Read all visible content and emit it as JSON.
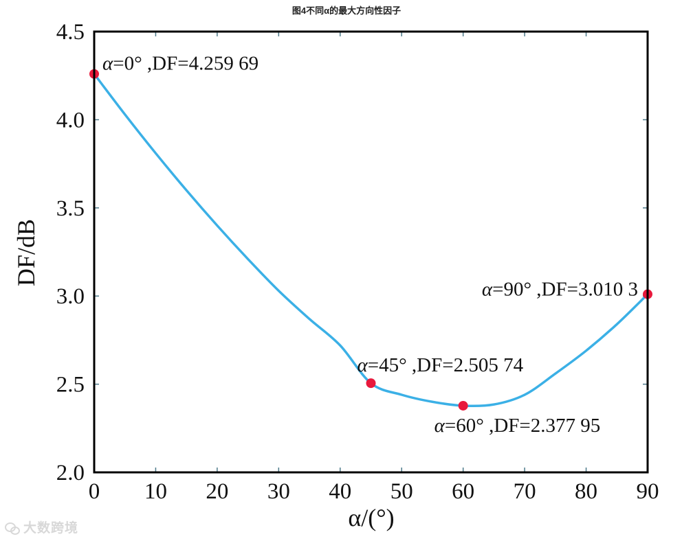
{
  "figure": {
    "title": "图4不同α的最大方向性因子"
  },
  "watermark": {
    "text": "大数跨境"
  },
  "colors": {
    "curve": "#3bb0e6",
    "marker": "#e8193c",
    "axis": "#000000",
    "tick": "#4d7a8a"
  },
  "chart_data": {
    "type": "line",
    "title": "图4不同α的最大方向性因子",
    "xlabel": "α/(°)",
    "ylabel": "DF/dB",
    "xlim": [
      0,
      90
    ],
    "ylim": [
      2.0,
      4.5
    ],
    "xticks": [
      0,
      10,
      20,
      30,
      40,
      50,
      60,
      70,
      80,
      90
    ],
    "xtick_labels": [
      "0",
      "10",
      "20",
      "30",
      "40",
      "50",
      "60",
      "70",
      "80",
      "90"
    ],
    "yticks": [
      2.0,
      2.5,
      3.0,
      3.5,
      4.0,
      4.5
    ],
    "ytick_labels": [
      "2.0",
      "2.5",
      "3.0",
      "3.5",
      "4.0",
      "4.5"
    ],
    "grid": false,
    "series": [
      {
        "x": [
          0,
          5,
          10,
          15,
          20,
          25,
          30,
          35,
          40,
          45,
          50,
          55,
          60,
          65,
          70,
          75,
          80,
          85,
          90
        ],
        "y": [
          4.25969,
          4.03,
          3.81,
          3.6,
          3.4,
          3.21,
          3.03,
          2.87,
          2.72,
          2.50574,
          2.44,
          2.4,
          2.37795,
          2.385,
          2.44,
          2.56,
          2.69,
          2.84,
          3.0103
        ]
      }
    ],
    "markers": [
      {
        "x": 0,
        "y": 4.25969,
        "label_alpha": "α",
        "label_rest": "=0°  ,DF=4.259 69"
      },
      {
        "x": 45,
        "y": 2.50574,
        "label_alpha": "α",
        "label_rest": "=45°  ,DF=2.505 74"
      },
      {
        "x": 60,
        "y": 2.37795,
        "label_alpha": "α",
        "label_rest": "=60°  ,DF=2.377 95"
      },
      {
        "x": 90,
        "y": 3.0103,
        "label_alpha": "α",
        "label_rest": "=90°  ,DF=3.010 3"
      }
    ]
  }
}
